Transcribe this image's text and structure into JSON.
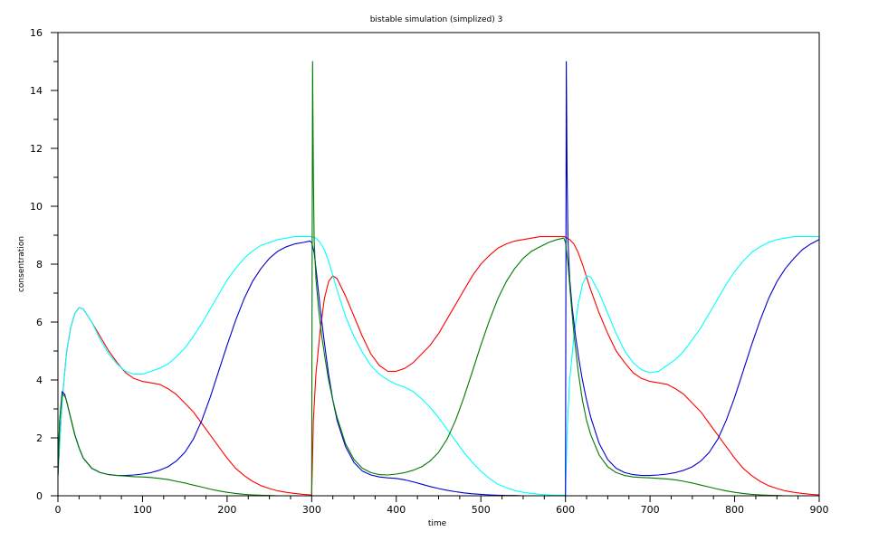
{
  "chart_data": {
    "type": "line",
    "title": "bistable simulation (simplized) 3",
    "xlabel": "time",
    "ylabel": "consentration",
    "xlim": [
      0,
      900
    ],
    "ylim": [
      0,
      16
    ],
    "xticks": [
      0,
      100,
      200,
      300,
      400,
      500,
      600,
      700,
      800,
      900
    ],
    "yticks": [
      0,
      2,
      4,
      6,
      8,
      10,
      12,
      14,
      16
    ],
    "grid": false,
    "legend": "none",
    "series": [
      {
        "color": "#ff0000",
        "x": [
          0,
          2,
          5,
          10,
          15,
          20,
          25,
          30,
          40,
          50,
          60,
          70,
          80,
          90,
          100,
          110,
          120,
          130,
          140,
          150,
          160,
          170,
          180,
          190,
          200,
          210,
          220,
          230,
          240,
          250,
          260,
          270,
          280,
          290,
          299,
          300,
          302,
          305,
          310,
          315,
          320,
          325,
          330,
          340,
          350,
          360,
          370,
          380,
          390,
          400,
          410,
          420,
          430,
          440,
          450,
          460,
          470,
          480,
          490,
          500,
          510,
          520,
          530,
          540,
          550,
          560,
          570,
          580,
          590,
          599,
          602,
          605,
          610,
          615,
          620,
          625,
          630,
          640,
          650,
          660,
          670,
          680,
          690,
          700,
          710,
          720,
          730,
          740,
          750,
          760,
          770,
          780,
          790,
          800,
          810,
          820,
          830,
          840,
          850,
          860,
          870,
          880,
          890,
          900
        ],
        "y": [
          0.7,
          1.8,
          3.3,
          4.9,
          5.8,
          6.3,
          6.5,
          6.45,
          6.0,
          5.5,
          5.0,
          4.6,
          4.25,
          4.05,
          3.95,
          3.9,
          3.85,
          3.7,
          3.5,
          3.2,
          2.9,
          2.5,
          2.1,
          1.7,
          1.3,
          0.95,
          0.7,
          0.5,
          0.35,
          0.25,
          0.17,
          0.12,
          0.08,
          0.05,
          0.03,
          0.02,
          2.6,
          4.2,
          5.7,
          6.8,
          7.4,
          7.6,
          7.5,
          6.9,
          6.2,
          5.5,
          4.9,
          4.5,
          4.3,
          4.3,
          4.4,
          4.6,
          4.9,
          5.2,
          5.6,
          6.1,
          6.6,
          7.1,
          7.6,
          8.0,
          8.3,
          8.55,
          8.7,
          8.8,
          8.85,
          8.9,
          8.95,
          8.95,
          8.95,
          8.95,
          8.9,
          8.85,
          8.7,
          8.4,
          8.0,
          7.55,
          7.1,
          6.3,
          5.6,
          5.0,
          4.6,
          4.25,
          4.05,
          3.95,
          3.9,
          3.85,
          3.7,
          3.5,
          3.2,
          2.9,
          2.5,
          2.1,
          1.7,
          1.3,
          0.95,
          0.7,
          0.5,
          0.35,
          0.25,
          0.17,
          0.12,
          0.08,
          0.05,
          0.03
        ]
      },
      {
        "color": "#00ffff",
        "x": [
          0,
          2,
          5,
          10,
          15,
          20,
          25,
          30,
          40,
          50,
          60,
          70,
          80,
          90,
          100,
          110,
          120,
          130,
          140,
          150,
          160,
          170,
          180,
          190,
          200,
          210,
          220,
          230,
          240,
          250,
          260,
          270,
          280,
          290,
          300,
          305,
          310,
          315,
          320,
          325,
          330,
          340,
          350,
          360,
          370,
          380,
          390,
          400,
          410,
          420,
          430,
          440,
          450,
          460,
          470,
          480,
          490,
          500,
          510,
          520,
          530,
          540,
          550,
          560,
          570,
          580,
          590,
          599,
          600,
          602,
          605,
          610,
          615,
          620,
          625,
          630,
          640,
          650,
          660,
          670,
          680,
          690,
          700,
          710,
          720,
          730,
          740,
          750,
          760,
          770,
          780,
          790,
          800,
          810,
          820,
          830,
          840,
          850,
          860,
          870,
          880,
          890,
          900
        ],
        "y": [
          0.7,
          1.8,
          3.3,
          4.9,
          5.8,
          6.3,
          6.5,
          6.45,
          6.0,
          5.4,
          4.9,
          4.55,
          4.3,
          4.2,
          4.2,
          4.3,
          4.4,
          4.55,
          4.8,
          5.1,
          5.5,
          5.95,
          6.45,
          6.95,
          7.45,
          7.85,
          8.2,
          8.45,
          8.65,
          8.75,
          8.85,
          8.9,
          8.95,
          8.95,
          8.95,
          8.9,
          8.75,
          8.5,
          8.1,
          7.6,
          7.1,
          6.2,
          5.5,
          4.95,
          4.5,
          4.2,
          4.0,
          3.85,
          3.75,
          3.6,
          3.35,
          3.05,
          2.7,
          2.3,
          1.9,
          1.5,
          1.15,
          0.85,
          0.6,
          0.4,
          0.28,
          0.18,
          0.12,
          0.08,
          0.05,
          0.03,
          0.02,
          0.02,
          0.0,
          2.2,
          4.0,
          5.5,
          6.6,
          7.3,
          7.6,
          7.55,
          7.0,
          6.3,
          5.6,
          5.0,
          4.6,
          4.35,
          4.25,
          4.3,
          4.5,
          4.7,
          5.0,
          5.4,
          5.8,
          6.3,
          6.8,
          7.3,
          7.75,
          8.1,
          8.4,
          8.6,
          8.75,
          8.85,
          8.9,
          8.95,
          8.95,
          8.95,
          8.95
        ]
      },
      {
        "color": "#0000cd",
        "x": [
          0,
          2,
          5,
          8,
          10,
          15,
          20,
          25,
          30,
          40,
          50,
          60,
          70,
          80,
          90,
          100,
          110,
          120,
          130,
          140,
          150,
          160,
          170,
          180,
          190,
          200,
          210,
          220,
          230,
          240,
          250,
          260,
          270,
          280,
          290,
          298,
          300,
          303,
          306,
          310,
          315,
          320,
          325,
          330,
          340,
          350,
          360,
          370,
          380,
          390,
          400,
          410,
          420,
          430,
          440,
          450,
          460,
          470,
          480,
          490,
          500,
          510,
          520,
          530,
          540,
          550,
          560,
          570,
          580,
          590,
          599,
          600,
          601,
          602,
          603,
          605,
          608,
          612,
          616,
          620,
          625,
          630,
          640,
          650,
          660,
          670,
          680,
          690,
          700,
          710,
          720,
          730,
          740,
          750,
          760,
          770,
          780,
          790,
          800,
          810,
          820,
          830,
          840,
          850,
          860,
          870,
          880,
          890,
          900
        ],
        "y": [
          0.7,
          2.6,
          3.6,
          3.5,
          3.3,
          2.7,
          2.1,
          1.65,
          1.3,
          0.95,
          0.8,
          0.73,
          0.7,
          0.7,
          0.72,
          0.75,
          0.8,
          0.88,
          1.0,
          1.2,
          1.5,
          1.95,
          2.6,
          3.4,
          4.3,
          5.2,
          6.05,
          6.8,
          7.4,
          7.85,
          8.2,
          8.45,
          8.6,
          8.7,
          8.75,
          8.8,
          8.75,
          8.4,
          7.6,
          6.5,
          5.3,
          4.2,
          3.3,
          2.6,
          1.7,
          1.15,
          0.85,
          0.72,
          0.65,
          0.62,
          0.6,
          0.55,
          0.48,
          0.4,
          0.32,
          0.25,
          0.19,
          0.14,
          0.1,
          0.07,
          0.05,
          0.03,
          0.02,
          0.01,
          0.01,
          0.0,
          0.0,
          0.0,
          0.0,
          0.0,
          0.0,
          0.0,
          15.0,
          11.0,
          8.8,
          7.5,
          6.5,
          5.5,
          4.7,
          4.0,
          3.3,
          2.7,
          1.8,
          1.25,
          0.95,
          0.8,
          0.73,
          0.7,
          0.7,
          0.72,
          0.75,
          0.8,
          0.88,
          1.0,
          1.2,
          1.5,
          1.95,
          2.6,
          3.4,
          4.3,
          5.2,
          6.05,
          6.8,
          7.4,
          7.85,
          8.2,
          8.5,
          8.7,
          8.85
        ]
      },
      {
        "color": "#007a00",
        "x": [
          0,
          2,
          5,
          8,
          10,
          15,
          20,
          25,
          30,
          40,
          50,
          60,
          70,
          80,
          90,
          100,
          110,
          120,
          130,
          140,
          150,
          160,
          170,
          180,
          190,
          200,
          210,
          220,
          230,
          240,
          250,
          260,
          270,
          280,
          290,
          299,
          300,
          301,
          302,
          303,
          305,
          308,
          312,
          316,
          320,
          325,
          330,
          340,
          350,
          360,
          370,
          380,
          390,
          400,
          410,
          420,
          430,
          440,
          450,
          460,
          470,
          480,
          490,
          500,
          510,
          520,
          530,
          540,
          550,
          560,
          570,
          580,
          590,
          598,
          600,
          603,
          606,
          610,
          615,
          620,
          625,
          630,
          640,
          650,
          660,
          670,
          680,
          690,
          700,
          710,
          720,
          730,
          740,
          750,
          760,
          770,
          780,
          790,
          800,
          810,
          820,
          830,
          840,
          850,
          860
        ],
        "y": [
          0.7,
          2.6,
          3.5,
          3.45,
          3.3,
          2.7,
          2.1,
          1.65,
          1.3,
          0.95,
          0.8,
          0.73,
          0.7,
          0.68,
          0.66,
          0.65,
          0.63,
          0.6,
          0.56,
          0.5,
          0.44,
          0.37,
          0.3,
          0.23,
          0.17,
          0.12,
          0.08,
          0.05,
          0.03,
          0.02,
          0.01,
          0.0,
          0.0,
          0.0,
          0.0,
          0.0,
          0.0,
          15.0,
          11.0,
          8.8,
          7.5,
          6.5,
          5.5,
          4.7,
          4.0,
          3.3,
          2.7,
          1.8,
          1.25,
          0.95,
          0.8,
          0.73,
          0.72,
          0.75,
          0.8,
          0.88,
          1.0,
          1.2,
          1.5,
          1.95,
          2.6,
          3.4,
          4.3,
          5.2,
          6.05,
          6.8,
          7.4,
          7.85,
          8.2,
          8.45,
          8.6,
          8.75,
          8.85,
          8.9,
          8.75,
          8.0,
          6.9,
          5.6,
          4.3,
          3.3,
          2.6,
          2.1,
          1.4,
          1.0,
          0.8,
          0.7,
          0.65,
          0.63,
          0.62,
          0.6,
          0.58,
          0.55,
          0.5,
          0.44,
          0.37,
          0.3,
          0.23,
          0.17,
          0.12,
          0.08,
          0.05,
          0.03,
          0.02,
          0.01,
          0.0
        ]
      }
    ]
  }
}
